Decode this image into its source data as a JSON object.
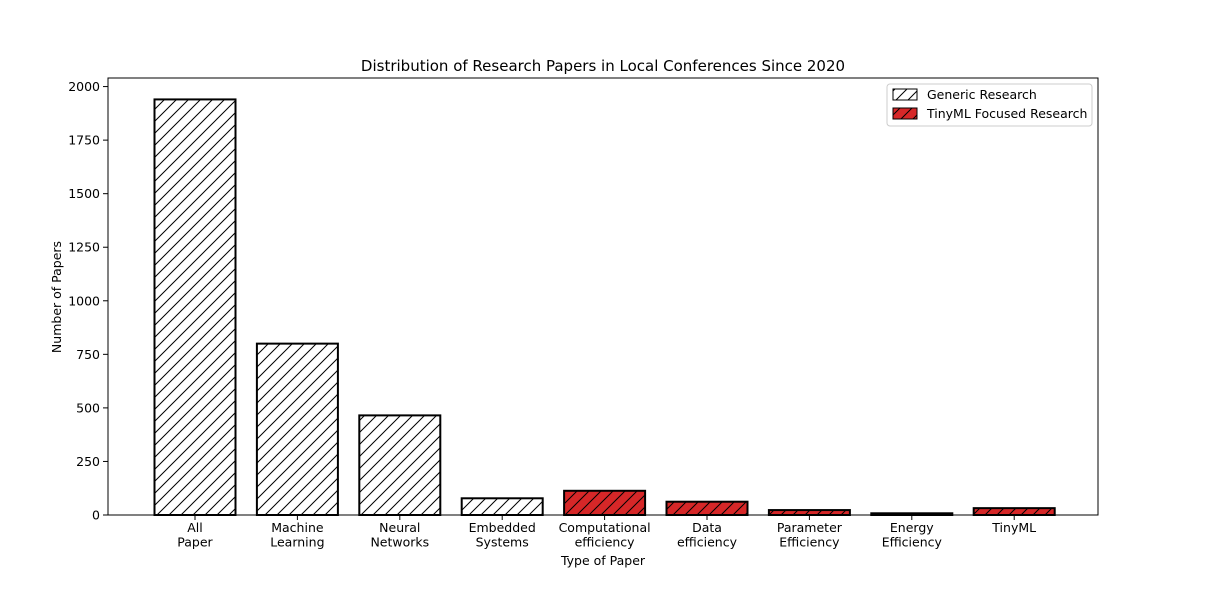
{
  "chart_data": {
    "type": "bar",
    "title": "Distribution of Research Papers in Local Conferences Since 2020",
    "xlabel": "Type of Paper",
    "ylabel": "Number of Papers",
    "ylim": [
      0,
      2040
    ],
    "yticks": [
      0,
      250,
      500,
      750,
      1000,
      1250,
      1500,
      1750,
      2000
    ],
    "grid": false,
    "legend_position": "top-right",
    "categories": [
      [
        "All",
        "Paper"
      ],
      [
        "Machine",
        "Learning"
      ],
      [
        "Neural",
        "Networks"
      ],
      [
        "Embedded",
        "Systems"
      ],
      [
        "Computational",
        "efficiency"
      ],
      [
        "Data",
        "efficiency"
      ],
      [
        "Parameter",
        "Efficiency"
      ],
      [
        "Energy",
        "Efficiency"
      ],
      [
        "TinyML"
      ]
    ],
    "values": [
      1940,
      800,
      465,
      78,
      113,
      62,
      23,
      8,
      32
    ],
    "groups": [
      "generic",
      "generic",
      "generic",
      "generic",
      "tinyml",
      "tinyml",
      "tinyml",
      "tinyml",
      "tinyml"
    ],
    "series": [
      {
        "key": "generic",
        "name": "Generic Research",
        "color": "#ffffff",
        "hatch": "diagonal"
      },
      {
        "key": "tinyml",
        "name": "TinyML Focused Research",
        "color": "#d62728",
        "hatch": "diagonal"
      }
    ]
  }
}
